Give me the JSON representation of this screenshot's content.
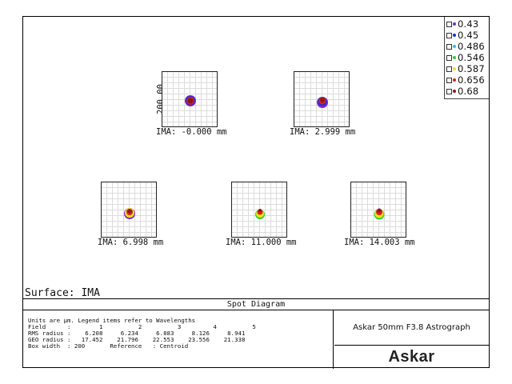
{
  "legend": {
    "items": [
      {
        "label": "0.43",
        "color": "#7b2ad6"
      },
      {
        "label": "0.45",
        "color": "#1f2fd8"
      },
      {
        "label": "0.486",
        "color": "#2ec6d6"
      },
      {
        "label": "0.546",
        "color": "#2ed12e"
      },
      {
        "label": "0.587",
        "color": "#f0e21a"
      },
      {
        "label": "0.656",
        "color": "#e01d1d"
      },
      {
        "label": "0.68",
        "color": "#8a1a1a"
      }
    ]
  },
  "axis_label": "200.00",
  "fields": [
    {
      "label": "IMA: -0.000 mm"
    },
    {
      "label": "IMA: 2.999 mm"
    },
    {
      "label": "IMA: 6.998 mm"
    },
    {
      "label": "IMA: 11.000 mm"
    },
    {
      "label": "IMA: 14.003 mm"
    }
  ],
  "surface": "Surface: IMA",
  "footer": {
    "title": "Spot Diagram",
    "info_lines": [
      "Units are µm. Legend items refer to Wavelengths",
      "Field      :        1          2          3         4          5",
      "RMS radius :    6.208     6.234     6.883     8.126     8.941",
      "GEO radius :   17.452    21.796    22.553    23.556    21.338",
      "Box width  : 200       Reference   : Centroid"
    ],
    "system_name": "Askar 50mm F3.8 Astrograph",
    "logo": "Askar"
  }
}
